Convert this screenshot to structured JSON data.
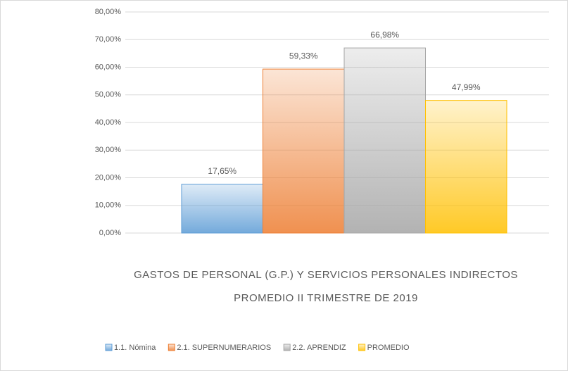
{
  "chart_data": {
    "type": "bar",
    "title": [
      "GASTOS DE PERSONAL (G.P.) Y SERVICIOS PERSONALES INDIRECTOS",
      "PROMEDIO II TRIMESTRE DE 2019"
    ],
    "categories": [
      null
    ],
    "series": [
      {
        "name": "1.1. Nómina",
        "color": "#5b9bd5",
        "values": [
          17.65
        ],
        "value_labels": [
          "17,65%"
        ]
      },
      {
        "name": "2.1. SUPERNUMERARIOS",
        "color": "#ed7d31",
        "values": [
          59.33
        ],
        "value_labels": [
          "59,33%"
        ]
      },
      {
        "name": "2.2. APRENDIZ",
        "color": "#a5a5a5",
        "values": [
          66.98
        ],
        "value_labels": [
          "66,98%"
        ]
      },
      {
        "name": "PROMEDIO",
        "color": "#ffc000",
        "values": [
          47.99
        ],
        "value_labels": [
          "47,99%"
        ]
      }
    ],
    "ylim": [
      0,
      80
    ],
    "yticks": [
      {
        "value": 0,
        "label": "0,00%"
      },
      {
        "value": 10,
        "label": "10,00%"
      },
      {
        "value": 20,
        "label": "20,00%"
      },
      {
        "value": 30,
        "label": "30,00%"
      },
      {
        "value": 40,
        "label": "40,00%"
      },
      {
        "value": 50,
        "label": "50,00%"
      },
      {
        "value": 60,
        "label": "60,00%"
      },
      {
        "value": 70,
        "label": "70,00%"
      },
      {
        "value": 80,
        "label": "80,00%"
      }
    ],
    "grid": true,
    "legend": "bottom"
  }
}
